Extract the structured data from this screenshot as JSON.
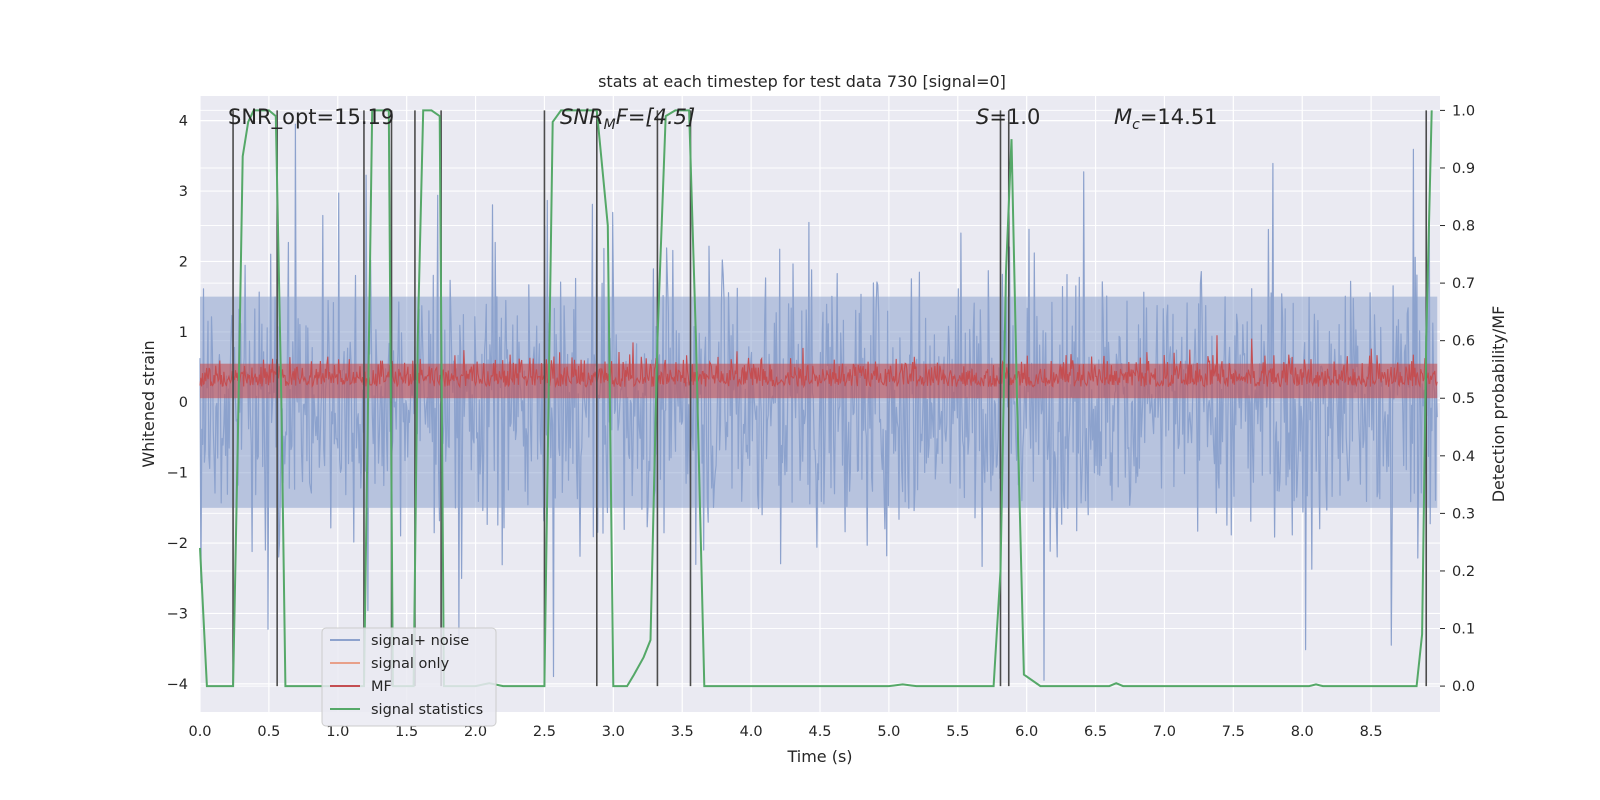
{
  "chart_data": {
    "type": "line",
    "title": "stats at each timestep for test data 730 [signal=0]",
    "xlabel": "Time (s)",
    "ylabel_left": "Whitened strain",
    "ylabel_right": "Detection probability/MF",
    "xlim": [
      0.0,
      9.0
    ],
    "ylim_left": [
      -4.4,
      4.35
    ],
    "ylim_right": [
      -0.045,
      1.025
    ],
    "x_ticks": [
      "0.0",
      "0.5",
      "1.0",
      "1.5",
      "2.0",
      "2.5",
      "3.0",
      "3.5",
      "4.0",
      "4.5",
      "5.0",
      "5.5",
      "6.0",
      "6.5",
      "7.0",
      "7.5",
      "8.0",
      "8.5"
    ],
    "y_left_ticks": [
      "4",
      "3",
      "2",
      "1",
      "0",
      "−1",
      "−2",
      "−3",
      "−4"
    ],
    "y_right_ticks": [
      "1.0",
      "0.9",
      "0.8",
      "0.7",
      "0.6",
      "0.5",
      "0.4",
      "0.3",
      "0.2",
      "0.1",
      "0.0"
    ],
    "annotations": {
      "snr_opt": "SNR_opt=15.19",
      "snr_mf_base": "SNR",
      "snr_mf_sub": "M",
      "snr_mf_rest": "F=[4.5]",
      "s_var": "S",
      "s_rest": "=1.0",
      "mc_var": "M",
      "mc_sub": "c",
      "mc_rest": "=14.51"
    },
    "legend": {
      "location": "lower-left",
      "entries": [
        "signal+ noise",
        "signal only",
        "MF",
        "signal statistics"
      ]
    },
    "colors": {
      "signal_noise": "#8da2cd",
      "signal_only": "#e8a08a",
      "mf": "#c44e52",
      "stats": "#55a868",
      "vlines": "#4c4c4c",
      "plot_bg": "#eaeaf2",
      "grid": "#ffffff"
    },
    "series": [
      {
        "name": "signal statistics",
        "axis": "right",
        "points": [
          [
            0.0,
            0.24
          ],
          [
            0.05,
            0.0
          ],
          [
            0.24,
            0.0
          ],
          [
            0.28,
            0.5
          ],
          [
            0.31,
            0.92
          ],
          [
            0.35,
            0.98
          ],
          [
            0.39,
            1.0
          ],
          [
            0.5,
            1.0
          ],
          [
            0.55,
            0.99
          ],
          [
            0.59,
            0.5
          ],
          [
            0.62,
            0.0
          ],
          [
            1.19,
            0.0
          ],
          [
            1.22,
            0.5
          ],
          [
            1.25,
            1.0
          ],
          [
            1.37,
            1.0
          ],
          [
            1.4,
            0.0
          ],
          [
            1.55,
            0.0
          ],
          [
            1.58,
            0.6
          ],
          [
            1.62,
            1.0
          ],
          [
            1.68,
            1.0
          ],
          [
            1.74,
            0.99
          ],
          [
            1.77,
            0.0
          ],
          [
            2.0,
            0.0
          ],
          [
            2.1,
            0.005
          ],
          [
            2.2,
            0.0
          ],
          [
            2.5,
            0.0
          ],
          [
            2.53,
            0.5
          ],
          [
            2.56,
            0.98
          ],
          [
            2.62,
            1.0
          ],
          [
            2.88,
            1.0
          ],
          [
            2.92,
            0.9
          ],
          [
            2.96,
            0.8
          ],
          [
            3.0,
            0.0
          ],
          [
            3.1,
            0.0
          ],
          [
            3.15,
            0.02
          ],
          [
            3.22,
            0.05
          ],
          [
            3.27,
            0.08
          ],
          [
            3.32,
            0.6
          ],
          [
            3.38,
            0.99
          ],
          [
            3.45,
            1.0
          ],
          [
            3.55,
            1.0
          ],
          [
            3.6,
            0.6
          ],
          [
            3.66,
            0.0
          ],
          [
            5.0,
            0.0
          ],
          [
            5.1,
            0.003
          ],
          [
            5.2,
            0.0
          ],
          [
            5.76,
            0.0
          ],
          [
            5.81,
            0.2
          ],
          [
            5.85,
            0.72
          ],
          [
            5.89,
            0.95
          ],
          [
            5.93,
            0.5
          ],
          [
            5.98,
            0.02
          ],
          [
            6.1,
            0.0
          ],
          [
            6.6,
            0.0
          ],
          [
            6.65,
            0.005
          ],
          [
            6.7,
            0.0
          ],
          [
            7.5,
            0.0
          ],
          [
            8.05,
            0.0
          ],
          [
            8.1,
            0.003
          ],
          [
            8.15,
            0.0
          ],
          [
            8.83,
            0.0
          ],
          [
            8.87,
            0.09
          ],
          [
            8.9,
            0.6
          ],
          [
            8.94,
            1.0
          ]
        ]
      }
    ],
    "vertical_lines_x": [
      0.24,
      0.56,
      1.19,
      1.39,
      1.56,
      1.75,
      2.5,
      2.88,
      3.32,
      3.56,
      5.81,
      5.87,
      8.9
    ]
  }
}
